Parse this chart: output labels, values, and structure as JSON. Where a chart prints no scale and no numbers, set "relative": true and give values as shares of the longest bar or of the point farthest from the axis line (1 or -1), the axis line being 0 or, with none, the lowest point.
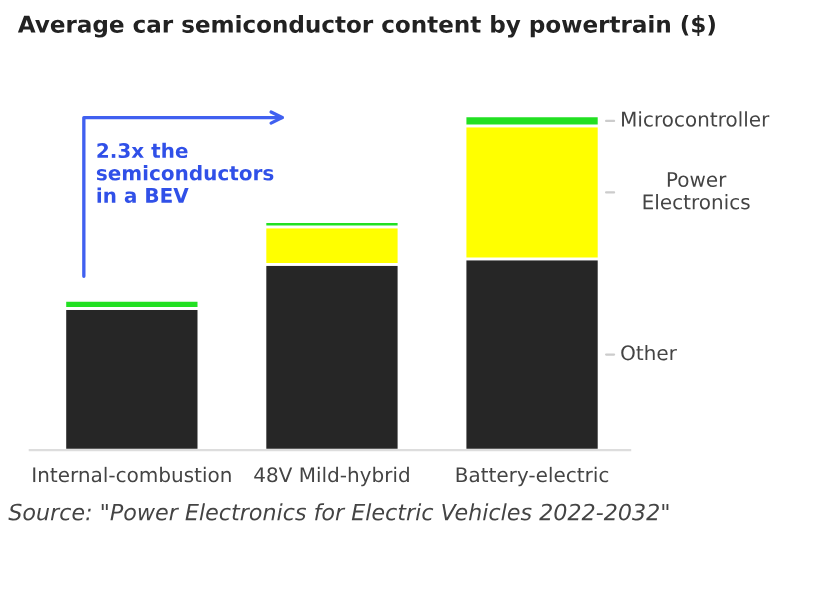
{
  "chart_data": {
    "type": "bar",
    "stacked": true,
    "relative": true,
    "title": "Average car semiconductor content by powertrain ($)",
    "categories": [
      "Internal-combustion",
      "48V Mild-hybrid",
      "Battery-electric"
    ],
    "series": [
      {
        "name": "Other",
        "color": "#262626",
        "values": [
          0.424,
          0.556,
          0.572
        ]
      },
      {
        "name": "Power\nElectronics",
        "color": "#ffff00",
        "values": [
          0,
          0.112,
          0.398
        ]
      },
      {
        "name": "Microcontroller",
        "color": "#22e022",
        "values": [
          0.024,
          0.016,
          0.03
        ]
      }
    ],
    "annotations": [
      "2.3x the\nsemiconductors\nin a BEV",
      "Source: \"Power Electronics for Electric Vehicles 2022-2032\""
    ],
    "legend": "right",
    "grid": false
  }
}
